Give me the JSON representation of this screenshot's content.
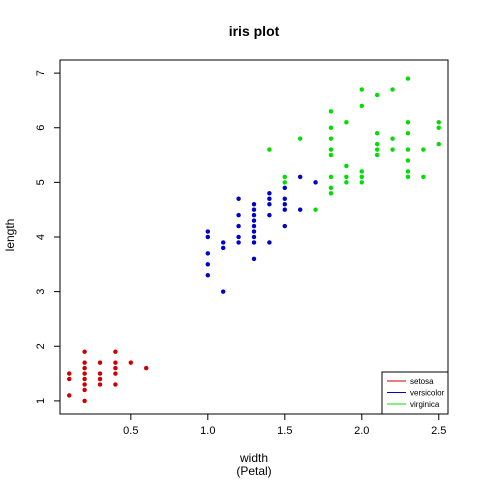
{
  "chart_data": {
    "type": "scatter",
    "title": "iris plot",
    "xlabel": "width",
    "xlabel_sub": "(Petal)",
    "ylabel": "length",
    "xlim": [
      0.04,
      2.56
    ],
    "ylim": [
      0.76,
      7.24
    ],
    "x_ticks": [
      0.5,
      1.0,
      1.5,
      2.0,
      2.5
    ],
    "x_tick_labels": [
      "0.5",
      "1.0",
      "1.5",
      "2.0",
      "2.5"
    ],
    "y_ticks": [
      1,
      2,
      3,
      4,
      5,
      6,
      7
    ],
    "y_tick_labels": [
      "1",
      "2",
      "3",
      "4",
      "5",
      "6",
      "7"
    ],
    "grid": false,
    "legend_position": "bottom-right",
    "series": [
      {
        "name": "setosa",
        "color": "#cc0000",
        "points": [
          [
            0.1,
            1.4
          ],
          [
            0.1,
            1.5
          ],
          [
            0.1,
            1.1
          ],
          [
            0.2,
            1.0
          ],
          [
            0.2,
            1.2
          ],
          [
            0.2,
            1.3
          ],
          [
            0.2,
            1.4
          ],
          [
            0.2,
            1.5
          ],
          [
            0.2,
            1.6
          ],
          [
            0.2,
            1.7
          ],
          [
            0.2,
            1.9
          ],
          [
            0.3,
            1.3
          ],
          [
            0.3,
            1.4
          ],
          [
            0.3,
            1.5
          ],
          [
            0.3,
            1.7
          ],
          [
            0.4,
            1.3
          ],
          [
            0.4,
            1.5
          ],
          [
            0.4,
            1.6
          ],
          [
            0.4,
            1.7
          ],
          [
            0.4,
            1.9
          ],
          [
            0.5,
            1.7
          ],
          [
            0.6,
            1.6
          ]
        ]
      },
      {
        "name": "versicolor",
        "color": "#0000cc",
        "points": [
          [
            1.0,
            3.3
          ],
          [
            1.0,
            3.5
          ],
          [
            1.0,
            3.7
          ],
          [
            1.0,
            4.0
          ],
          [
            1.0,
            4.1
          ],
          [
            1.1,
            3.0
          ],
          [
            1.1,
            3.8
          ],
          [
            1.1,
            3.9
          ],
          [
            1.2,
            3.9
          ],
          [
            1.2,
            4.0
          ],
          [
            1.2,
            4.2
          ],
          [
            1.2,
            4.4
          ],
          [
            1.2,
            4.7
          ],
          [
            1.3,
            3.6
          ],
          [
            1.3,
            3.9
          ],
          [
            1.3,
            4.0
          ],
          [
            1.3,
            4.1
          ],
          [
            1.3,
            4.2
          ],
          [
            1.3,
            4.3
          ],
          [
            1.3,
            4.4
          ],
          [
            1.3,
            4.5
          ],
          [
            1.3,
            4.6
          ],
          [
            1.4,
            3.9
          ],
          [
            1.4,
            4.4
          ],
          [
            1.4,
            4.6
          ],
          [
            1.4,
            4.7
          ],
          [
            1.4,
            4.8
          ],
          [
            1.5,
            4.2
          ],
          [
            1.5,
            4.5
          ],
          [
            1.5,
            4.6
          ],
          [
            1.5,
            4.7
          ],
          [
            1.5,
            4.9
          ],
          [
            1.6,
            4.5
          ],
          [
            1.6,
            5.1
          ],
          [
            1.7,
            5.0
          ]
        ]
      },
      {
        "name": "virginica",
        "color": "#00dd00",
        "points": [
          [
            1.4,
            5.6
          ],
          [
            1.5,
            5.0
          ],
          [
            1.5,
            5.1
          ],
          [
            1.6,
            5.8
          ],
          [
            1.7,
            4.5
          ],
          [
            1.8,
            4.8
          ],
          [
            1.8,
            4.9
          ],
          [
            1.8,
            5.1
          ],
          [
            1.8,
            5.5
          ],
          [
            1.8,
            5.6
          ],
          [
            1.8,
            5.8
          ],
          [
            1.8,
            6.0
          ],
          [
            1.8,
            6.3
          ],
          [
            1.9,
            5.0
          ],
          [
            1.9,
            5.1
          ],
          [
            1.9,
            5.3
          ],
          [
            1.9,
            6.1
          ],
          [
            2.0,
            5.0
          ],
          [
            2.0,
            5.1
          ],
          [
            2.0,
            5.2
          ],
          [
            2.0,
            6.4
          ],
          [
            2.0,
            6.7
          ],
          [
            2.1,
            5.5
          ],
          [
            2.1,
            5.6
          ],
          [
            2.1,
            5.7
          ],
          [
            2.1,
            5.9
          ],
          [
            2.1,
            6.6
          ],
          [
            2.2,
            5.6
          ],
          [
            2.2,
            5.8
          ],
          [
            2.2,
            6.7
          ],
          [
            2.3,
            5.1
          ],
          [
            2.3,
            5.2
          ],
          [
            2.3,
            5.4
          ],
          [
            2.3,
            5.6
          ],
          [
            2.3,
            5.9
          ],
          [
            2.3,
            6.1
          ],
          [
            2.3,
            6.9
          ],
          [
            2.4,
            5.1
          ],
          [
            2.4,
            5.6
          ],
          [
            2.5,
            5.7
          ],
          [
            2.5,
            6.0
          ],
          [
            2.5,
            6.1
          ]
        ]
      }
    ]
  }
}
